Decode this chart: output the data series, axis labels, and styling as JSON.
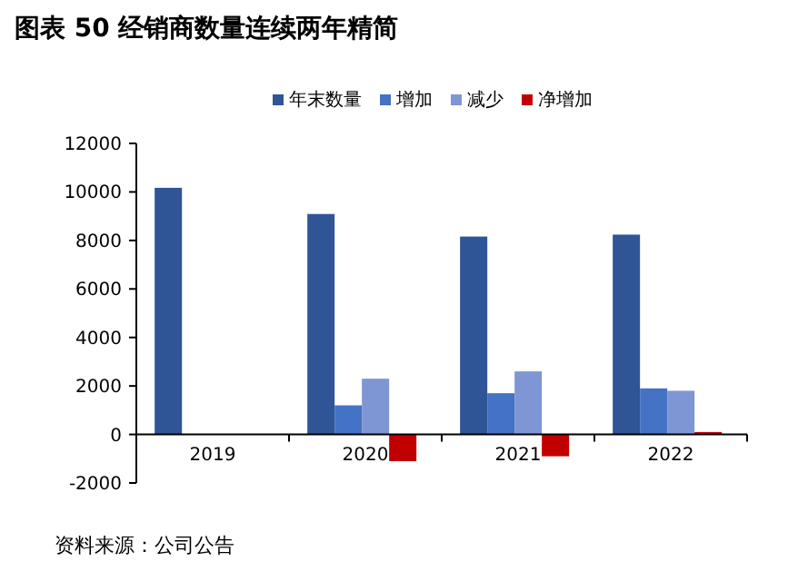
{
  "chart_data": {
    "type": "bar",
    "title": "图表 50 经销商数量连续两年精简",
    "categories": [
      "2019",
      "2020",
      "2021",
      "2022"
    ],
    "series": [
      {
        "name": "年末数量",
        "color": "#2f5597",
        "values": [
          10170,
          9090,
          8160,
          8240
        ]
      },
      {
        "name": "增加",
        "color": "#4472c4",
        "values": [
          null,
          1200,
          1700,
          1900
        ]
      },
      {
        "name": "减少",
        "color": "#7f96d4",
        "values": [
          null,
          2300,
          2600,
          1800
        ]
      },
      {
        "name": "净增加",
        "color": "#c00000",
        "values": [
          null,
          -1100,
          -900,
          100
        ]
      }
    ],
    "ylim": [
      -2000,
      12000
    ],
    "yticks": [
      -2000,
      0,
      2000,
      4000,
      6000,
      8000,
      10000,
      12000
    ],
    "legend": "top right",
    "grid": false,
    "annotations": [
      "资料来源：公司公告"
    ]
  }
}
